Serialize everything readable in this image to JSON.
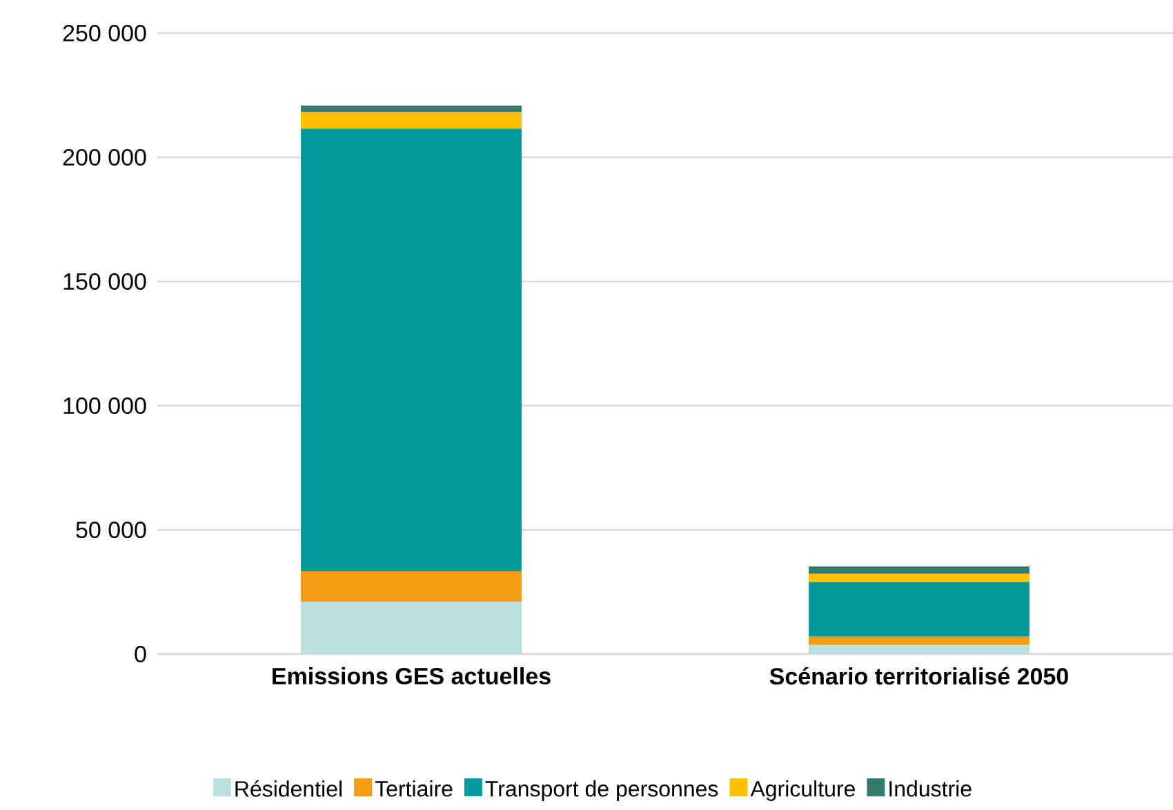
{
  "chart_data": {
    "type": "bar",
    "stacked": true,
    "categories": [
      "Emissions GES actuelles",
      "Scénario territorialisé 2050"
    ],
    "series": [
      {
        "name": "Résidentiel",
        "color": "#b9e0dc",
        "values": [
          21100,
          3700
        ]
      },
      {
        "name": "Tertiaire",
        "color": "#f59c12",
        "values": [
          12200,
          3300
        ]
      },
      {
        "name": "Transport de personnes",
        "color": "#049a9c",
        "values": [
          178200,
          22000
        ]
      },
      {
        "name": "Agriculture",
        "color": "#ffc000",
        "values": [
          6700,
          3300
        ]
      },
      {
        "name": "Industrie",
        "color": "#347a6e",
        "values": [
          2600,
          3000
        ]
      }
    ],
    "ylim": [
      0,
      250000
    ],
    "yticks": [
      {
        "value": 0,
        "label": "0"
      },
      {
        "value": 50000,
        "label": "50  000"
      },
      {
        "value": 100000,
        "label": "100  000"
      },
      {
        "value": 150000,
        "label": "150  000"
      },
      {
        "value": 200000,
        "label": "200  000"
      },
      {
        "value": 250000,
        "label": "250  000"
      }
    ],
    "grid": "y",
    "legend": "bottom"
  }
}
